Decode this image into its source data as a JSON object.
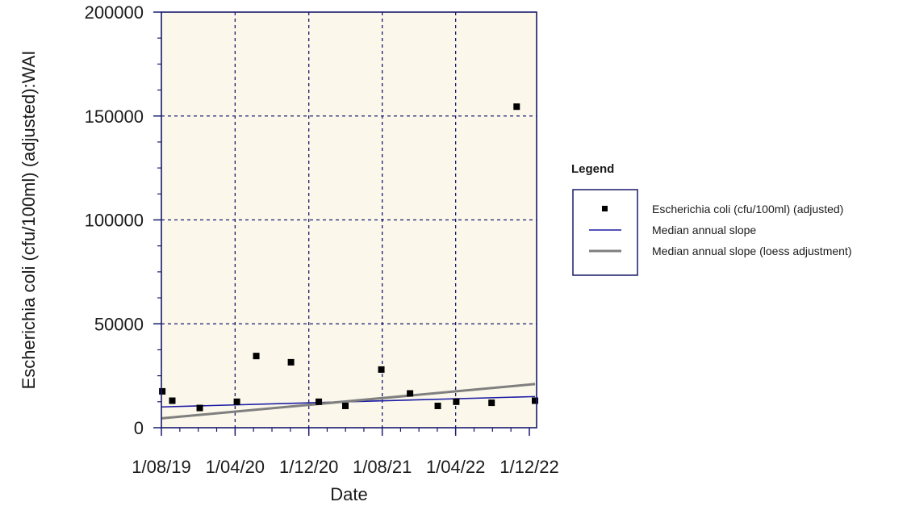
{
  "chart_data": {
    "type": "scatter",
    "title": "",
    "xlabel": "Date",
    "ylabel": "Escherichia coli (cfu/100ml) (adjusted):WAI",
    "ylim": [
      0,
      200000
    ],
    "xlim": [
      "2019-08-01",
      "2022-12-01"
    ],
    "x_ticks": [
      "1/08/19",
      "1/04/20",
      "1/12/20",
      "1/08/21",
      "1/04/22",
      "1/12/22"
    ],
    "x_tick_dates": [
      "2019-08-01",
      "2020-04-01",
      "2020-12-01",
      "2021-08-01",
      "2022-04-01",
      "2022-12-01"
    ],
    "y_ticks": [
      "0",
      "50000",
      "100000",
      "150000",
      "200000"
    ],
    "y_tick_values": [
      0,
      50000,
      100000,
      150000,
      200000
    ],
    "grid": true,
    "background_color": "#fbf7ea",
    "frame_color": "#1a1a6e",
    "grid_color": "#1a1a6e",
    "legend_placement": "right",
    "legend": {
      "title": "Legend",
      "entries": [
        {
          "label": "Escherichia coli (cfu/100ml) (adjusted)",
          "marker": "square",
          "color": "#000000"
        },
        {
          "label": "Median annual slope",
          "marker": "line",
          "color": "#1c1ca6"
        },
        {
          "label": "Median annual slope (loess adjustment)",
          "marker": "line",
          "color": "#7f7f7f"
        }
      ]
    },
    "series": [
      {
        "name": "Escherichia coli (cfu/100ml) (adjusted)",
        "type": "scatter",
        "color": "#000000",
        "points": [
          {
            "x": "2019-08-04",
            "y": 17500
          },
          {
            "x": "2019-09-06",
            "y": 13000
          },
          {
            "x": "2019-12-06",
            "y": 9500
          },
          {
            "x": "2020-04-07",
            "y": 12500
          },
          {
            "x": "2020-06-10",
            "y": 34500
          },
          {
            "x": "2020-10-03",
            "y": 31500
          },
          {
            "x": "2021-01-03",
            "y": 12500
          },
          {
            "x": "2021-04-01",
            "y": 10500
          },
          {
            "x": "2021-07-29",
            "y": 28000
          },
          {
            "x": "2021-11-01",
            "y": 16500
          },
          {
            "x": "2022-02-01",
            "y": 10500
          },
          {
            "x": "2022-04-03",
            "y": 12500
          },
          {
            "x": "2022-07-29",
            "y": 12000
          },
          {
            "x": "2022-10-20",
            "y": 154500
          },
          {
            "x": "2022-12-20",
            "y": 13000
          }
        ]
      },
      {
        "name": "Median annual slope",
        "type": "line",
        "color": "#1c1ca6",
        "points": [
          {
            "x": "2019-08-01",
            "y": 10000
          },
          {
            "x": "2022-12-20",
            "y": 15000
          }
        ]
      },
      {
        "name": "Median annual slope (loess adjustment)",
        "type": "line",
        "color": "#7f7f7f",
        "points": [
          {
            "x": "2019-08-01",
            "y": 4500
          },
          {
            "x": "2022-12-20",
            "y": 21000
          }
        ]
      }
    ]
  }
}
